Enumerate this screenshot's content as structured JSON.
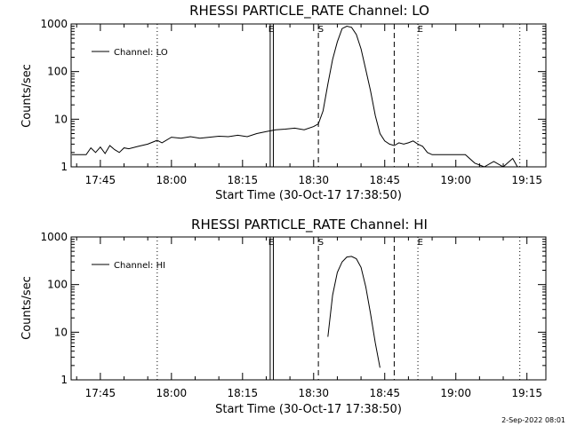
{
  "footer": {
    "date": "2-Sep-2022 08:01"
  },
  "chart_data": [
    {
      "type": "line",
      "title": "RHESSI PARTICLE_RATE Channel: LO",
      "xlabel": "Start Time (30-Oct-17 17:38:50)",
      "ylabel": "Counts/sec",
      "yscale": "log",
      "xlim": [
        "17:38:50",
        "19:19:00"
      ],
      "ylim": [
        1,
        1000
      ],
      "xticks": [
        "17:45",
        "18:00",
        "18:15",
        "18:30",
        "18:45",
        "19:00",
        "19:15"
      ],
      "yticks": [
        "1",
        "10",
        "100",
        "1000"
      ],
      "legend": {
        "entries": [
          "Channel: LO"
        ],
        "position": "top-left"
      },
      "annotations": {
        "dotted_lines": [
          "17:57:00",
          "18:52:00",
          "19:13:30"
        ],
        "solid_lines": [
          "18:20:50",
          "18:21:30"
        ],
        "dashed_lines": [
          "18:31:00",
          "18:47:00"
        ],
        "marks": [
          {
            "label": "S",
            "time": "18:31:20"
          },
          {
            "label": "E",
            "time": "18:52:20"
          },
          {
            "label": "E",
            "time": "18:20:50"
          }
        ]
      },
      "series": [
        {
          "name": "Channel: LO",
          "x": [
            "17:39",
            "17:42",
            "17:43",
            "17:44",
            "17:45",
            "17:46",
            "17:47",
            "17:48",
            "17:49",
            "17:50",
            "17:51",
            "17:53",
            "17:55",
            "17:57",
            "17:58",
            "18:00",
            "18:02",
            "18:04",
            "18:06",
            "18:08",
            "18:10",
            "18:12",
            "18:14",
            "18:16",
            "18:18",
            "18:20",
            "18:22",
            "18:24",
            "18:26",
            "18:28",
            "18:30",
            "18:31",
            "18:32",
            "18:33",
            "18:34",
            "18:35",
            "18:36",
            "18:37",
            "18:38",
            "18:39",
            "18:40",
            "18:41",
            "18:42",
            "18:43",
            "18:44",
            "18:45",
            "18:46",
            "18:47",
            "18:48",
            "18:49",
            "18:50",
            "18:51",
            "18:52",
            "18:53",
            "18:54",
            "18:55",
            "18:56",
            "18:58",
            "19:00",
            "19:02",
            "19:04",
            "19:06",
            "19:08",
            "19:10",
            "19:12",
            "19:13"
          ],
          "y": [
            1.8,
            1.8,
            2.5,
            2.0,
            2.6,
            1.9,
            2.8,
            2.3,
            2.0,
            2.5,
            2.4,
            2.7,
            3.0,
            3.6,
            3.2,
            4.2,
            4.0,
            4.3,
            4.0,
            4.2,
            4.4,
            4.3,
            4.6,
            4.3,
            5.0,
            5.5,
            6.0,
            6.2,
            6.5,
            6.0,
            7.0,
            8,
            15,
            55,
            180,
            420,
            800,
            900,
            850,
            600,
            300,
            110,
            40,
            12,
            5,
            3.5,
            3,
            2.8,
            3.2,
            3,
            3.2,
            3.5,
            3,
            2.7,
            2,
            1.8,
            1.8,
            1.8,
            1.8,
            1.8,
            1.2,
            1.0,
            1.3,
            1.0,
            1.5,
            1.0
          ]
        }
      ]
    },
    {
      "type": "line",
      "title": "RHESSI PARTICLE_RATE Channel: HI",
      "xlabel": "Start Time (30-Oct-17 17:38:50)",
      "ylabel": "Counts/sec",
      "yscale": "log",
      "xlim": [
        "17:38:50",
        "19:19:00"
      ],
      "ylim": [
        1,
        1000
      ],
      "xticks": [
        "17:45",
        "18:00",
        "18:15",
        "18:30",
        "18:45",
        "19:00",
        "19:15"
      ],
      "yticks": [
        "1",
        "10",
        "100",
        "1000"
      ],
      "legend": {
        "entries": [
          "Channel: HI"
        ],
        "position": "top-left"
      },
      "annotations": {
        "dotted_lines": [
          "17:57:00",
          "18:52:00",
          "19:13:30"
        ],
        "solid_lines": [
          "18:20:50",
          "18:21:30"
        ],
        "dashed_lines": [
          "18:31:00",
          "18:47:00"
        ],
        "marks": [
          {
            "label": "S",
            "time": "18:31:20"
          },
          {
            "label": "E",
            "time": "18:52:20"
          },
          {
            "label": "E",
            "time": "18:20:50"
          }
        ]
      },
      "series": [
        {
          "name": "Channel: HI",
          "x": [
            "18:33",
            "18:34",
            "18:35",
            "18:36",
            "18:37",
            "18:38",
            "18:39",
            "18:40",
            "18:41",
            "18:42",
            "18:43",
            "18:44"
          ],
          "y": [
            8,
            60,
            180,
            300,
            380,
            390,
            350,
            230,
            90,
            25,
            6,
            1.8
          ]
        }
      ]
    }
  ]
}
